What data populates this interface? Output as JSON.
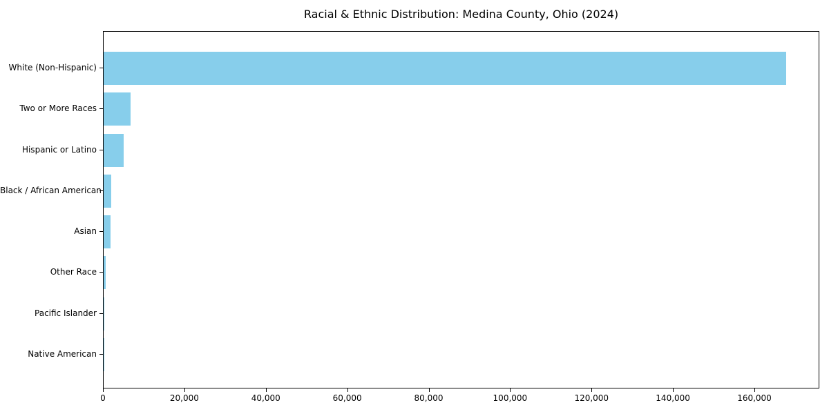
{
  "chart_data": {
    "type": "bar",
    "orientation": "horizontal",
    "title": "Racial & Ethnic Distribution: Medina County, Ohio (2024)",
    "categories": [
      "White (Non-Hispanic)",
      "Two or More Races",
      "Hispanic or Latino",
      "Black / African American",
      "Asian",
      "Other Race",
      "Pacific Islander",
      "Native American"
    ],
    "values": [
      167600,
      6600,
      4950,
      1920,
      1700,
      500,
      60,
      40
    ],
    "xlabel": "",
    "ylabel": "",
    "xlim": [
      0,
      175950
    ],
    "xticks": [
      0,
      20000,
      40000,
      60000,
      80000,
      100000,
      120000,
      140000,
      160000
    ],
    "xtick_labels": [
      "0",
      "20,000",
      "40,000",
      "60,000",
      "80,000",
      "100,000",
      "120,000",
      "140,000",
      "160,000"
    ],
    "bar_color": "#87CEEB",
    "text_color": "#000000",
    "grid": false,
    "legend": null
  }
}
